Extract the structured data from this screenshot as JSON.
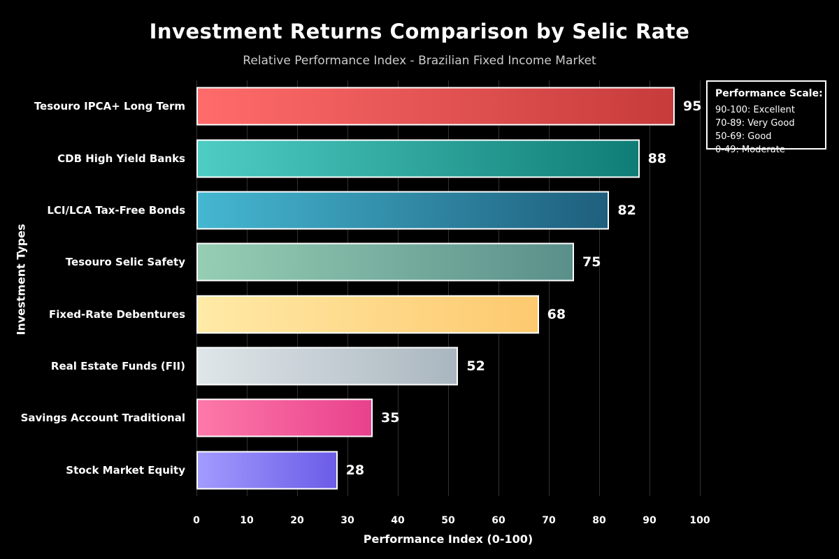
{
  "chart_data": {
    "type": "bar",
    "orientation": "horizontal",
    "title": "Investment Returns Comparison by Selic Rate",
    "subtitle": "Relative Performance Index - Brazilian Fixed Income Market",
    "xlabel": "Performance Index (0-100)",
    "ylabel": "Investment Types",
    "xlim": [
      0,
      100
    ],
    "xticks": [
      0,
      10,
      20,
      30,
      40,
      50,
      60,
      70,
      80,
      90,
      100
    ],
    "grid": true,
    "legend_position": "top-right",
    "categories": [
      "Tesouro IPCA+ Long Term",
      "CDB High Yield Banks",
      "LCI/LCA Tax-Free Bonds",
      "Tesouro Selic Safety",
      "Fixed-Rate Debentures",
      "Real Estate Funds (FII)",
      "Savings Account Traditional",
      "Stock Market Equity"
    ],
    "values": [
      95,
      88,
      82,
      75,
      68,
      52,
      35,
      28
    ],
    "bar_gradients": [
      [
        "#ff6b6b",
        "#c73b3b"
      ],
      [
        "#4ecdc4",
        "#0f7d75"
      ],
      [
        "#45b7d1",
        "#1e5f7d"
      ],
      [
        "#96ceb4",
        "#5a8f8a"
      ],
      [
        "#ffeaa7",
        "#fdc96e"
      ],
      [
        "#dfe6e9",
        "#aab6bf"
      ],
      [
        "#fd79a8",
        "#e8418d"
      ],
      [
        "#a29bfe",
        "#6c5ce7"
      ]
    ]
  },
  "legend": {
    "title": "Performance Scale:",
    "items": [
      "90-100: Excellent",
      "70-89: Very Good",
      "50-69: Good",
      "0-49: Moderate"
    ]
  },
  "colors": {
    "background": "#000000",
    "grid_line": "#333333",
    "title_text": "#ffffff",
    "subtitle_text": "#cccccc",
    "bar_border": "#ffffff",
    "legend_border": "#ffffff",
    "value_text": "#ffffff"
  }
}
